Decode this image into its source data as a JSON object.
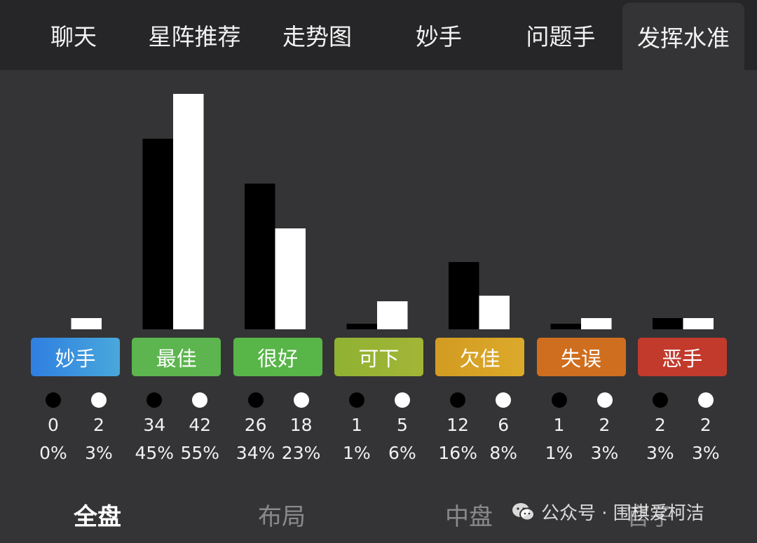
{
  "tabs": [
    {
      "label": "聊天"
    },
    {
      "label": "星阵推荐"
    },
    {
      "label": "走势图"
    },
    {
      "label": "妙手"
    },
    {
      "label": "问题手"
    },
    {
      "label": "发挥水准",
      "active": true
    }
  ],
  "chart_data": {
    "type": "bar",
    "categories": [
      "妙手",
      "最佳",
      "很好",
      "可下",
      "欠佳",
      "失误",
      "恶手"
    ],
    "category_colors": [
      [
        "#2f7fe0",
        "#49a8db"
      ],
      [
        "#5cb54e",
        "#5cb54e"
      ],
      [
        "#58b548",
        "#58b548"
      ],
      [
        "#8fb233",
        "#a3b536"
      ],
      [
        "#d29b22",
        "#dcaa2a"
      ],
      [
        "#cf6e1f",
        "#cf6e1f"
      ],
      [
        "#c23a2c",
        "#c23a2c"
      ]
    ],
    "series": [
      {
        "color": "#000000",
        "values": [
          0,
          34,
          26,
          1,
          12,
          1,
          2
        ],
        "percents": [
          "0%",
          "45%",
          "34%",
          "1%",
          "16%",
          "1%",
          "3%"
        ]
      },
      {
        "color": "#ffffff",
        "values": [
          2,
          42,
          18,
          5,
          6,
          2,
          2
        ],
        "percents": [
          "3%",
          "55%",
          "23%",
          "6%",
          "8%",
          "3%",
          "3%"
        ]
      }
    ],
    "ylim": [
      0,
      42
    ],
    "grid": false
  },
  "bottom_tabs": [
    {
      "label": "全盘",
      "active": true
    },
    {
      "label": "布局"
    },
    {
      "label": "中盘"
    },
    {
      "label": "官子"
    }
  ],
  "watermark": {
    "text": "公众号 · 围棋爱柯洁"
  }
}
